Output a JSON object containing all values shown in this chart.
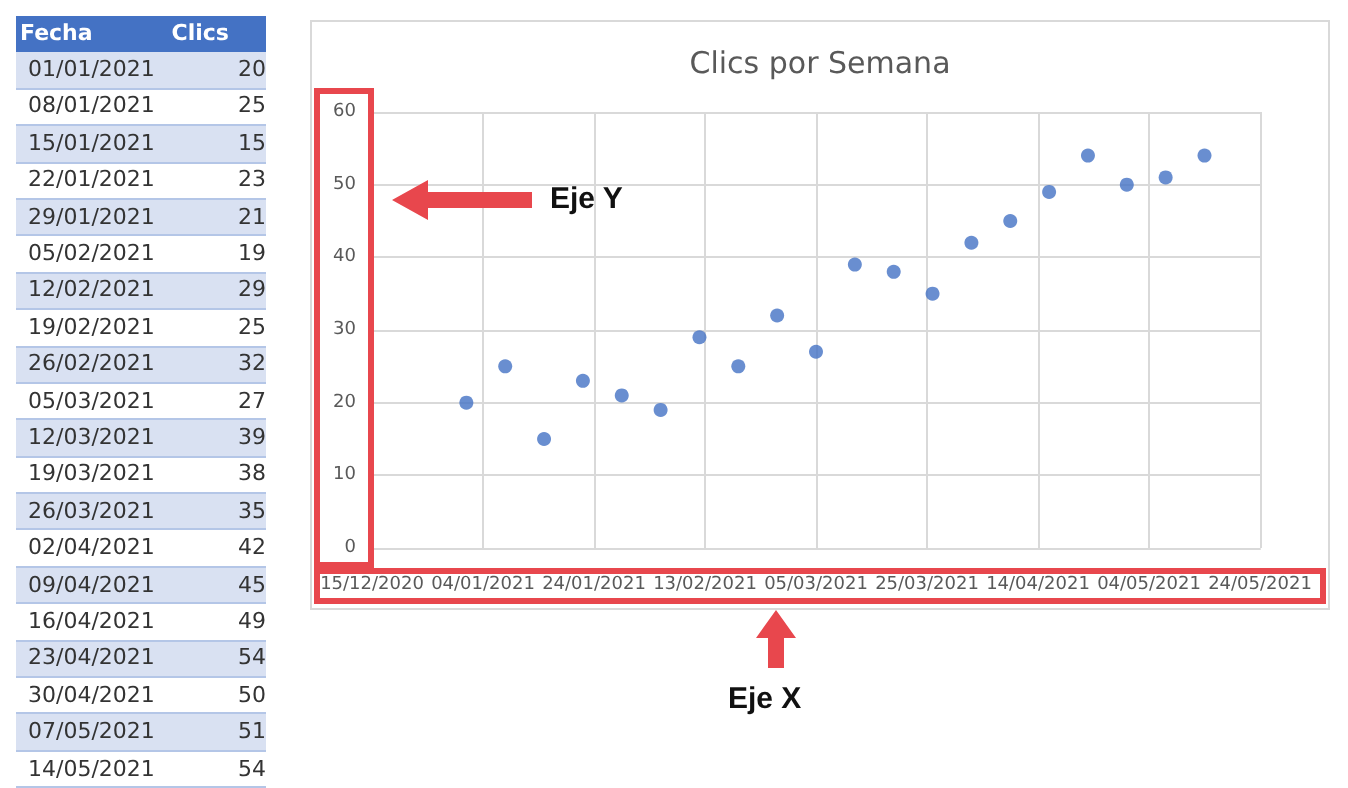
{
  "chart_data": [
    {
      "type": "other",
      "xlabel": "Fecha",
      "ylabel": "Clics",
      "data_labels": true,
      "categories": [
        "01/01/2021",
        "08/01/2021",
        "15/01/2021",
        "22/01/2021",
        "29/01/2021",
        "05/02/2021",
        "12/02/2021",
        "19/02/2021",
        "26/02/2021",
        "05/03/2021",
        "12/03/2021",
        "19/03/2021",
        "26/03/2021",
        "02/04/2021",
        "09/04/2021",
        "16/04/2021",
        "23/04/2021",
        "30/04/2021",
        "07/05/2021",
        "14/05/2021"
      ],
      "values": [
        20,
        25,
        15,
        23,
        21,
        19,
        29,
        25,
        32,
        27,
        39,
        38,
        35,
        42,
        45,
        49,
        54,
        50,
        51,
        54
      ]
    },
    {
      "type": "scatter",
      "title": "Clics por Semana",
      "x": [
        "2021-01-01",
        "2021-01-08",
        "2021-01-15",
        "2021-01-22",
        "2021-01-29",
        "2021-02-05",
        "2021-02-12",
        "2021-02-19",
        "2021-02-26",
        "2021-03-05",
        "2021-03-12",
        "2021-03-19",
        "2021-03-26",
        "2021-04-02",
        "2021-04-09",
        "2021-04-16",
        "2021-04-23",
        "2021-04-30",
        "2021-05-07",
        "2021-05-14"
      ],
      "values": [
        20,
        25,
        15,
        23,
        21,
        19,
        29,
        25,
        32,
        27,
        39,
        38,
        35,
        42,
        45,
        49,
        54,
        50,
        51,
        54
      ],
      "color": "#4472c4",
      "xlim": [
        "2020-12-15",
        "2021-05-24"
      ],
      "xticks": [
        {
          "value": "2020-12-15",
          "label": "15/12/2020"
        },
        {
          "value": "2021-01-04",
          "label": "04/01/2021"
        },
        {
          "value": "2021-01-24",
          "label": "24/01/2021"
        },
        {
          "value": "2021-02-13",
          "label": "13/02/2021"
        },
        {
          "value": "2021-03-05",
          "label": "05/03/2021"
        },
        {
          "value": "2021-03-25",
          "label": "25/03/2021"
        },
        {
          "value": "2021-04-14",
          "label": "14/04/2021"
        },
        {
          "value": "2021-05-04",
          "label": "04/05/2021"
        },
        {
          "value": "2021-05-24",
          "label": "24/05/2021"
        }
      ],
      "ylim": [
        0,
        60
      ],
      "yticks": [
        0,
        10,
        20,
        30,
        40,
        50,
        60
      ],
      "grid": true,
      "marker": "circle",
      "annotations": [
        "Eje Y",
        "Eje X"
      ]
    }
  ]
}
